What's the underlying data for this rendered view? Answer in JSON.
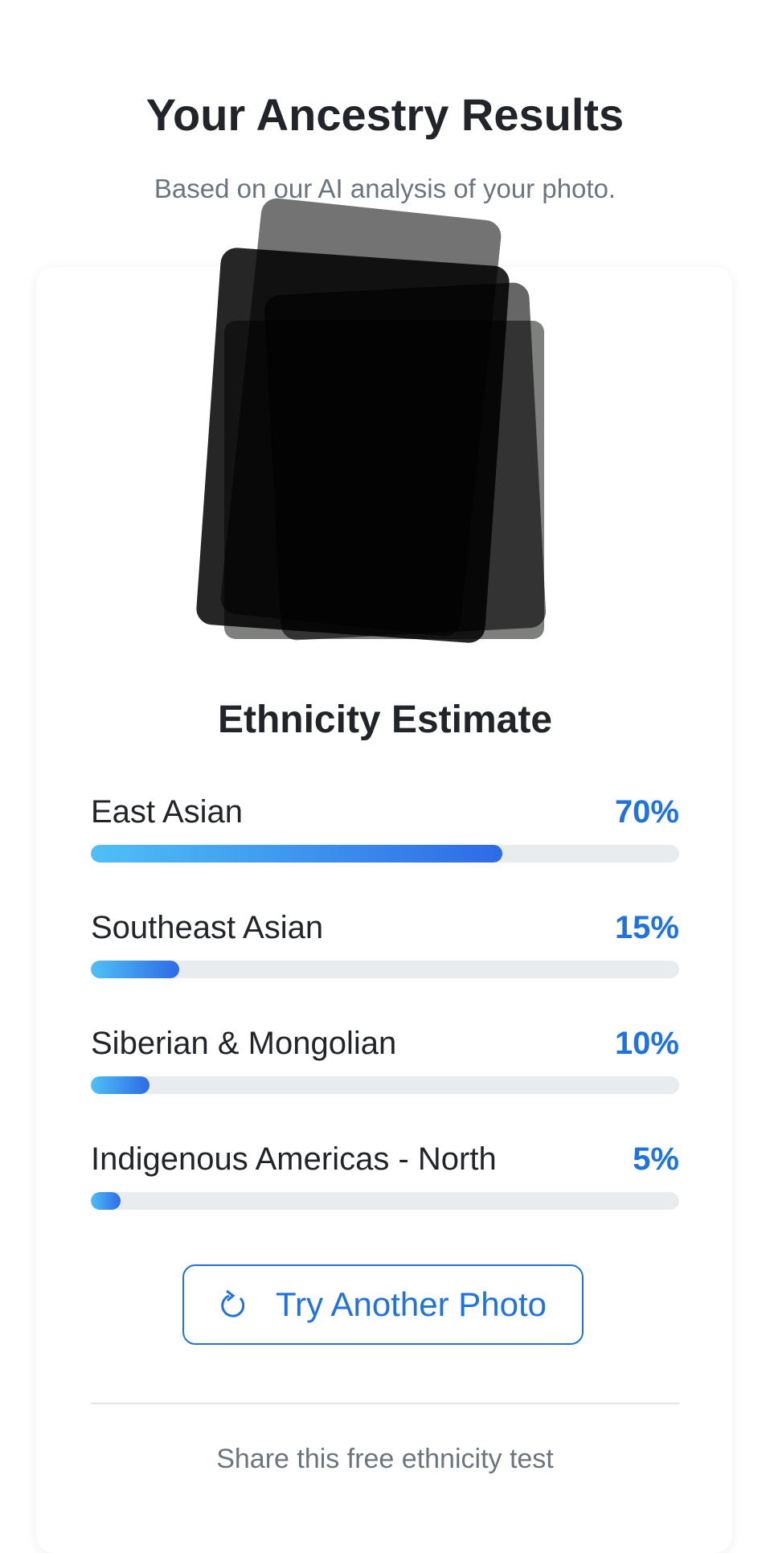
{
  "header": {
    "title": "Your Ancestry Results",
    "subtitle": "Based on our AI analysis of your photo."
  },
  "photo": {
    "description_hidden": true
  },
  "results": {
    "heading": "Ethnicity Estimate",
    "accent": "#1f73e0",
    "items": [
      {
        "label": "East Asian",
        "percent_label": "70%",
        "percent": 70
      },
      {
        "label": "Southeast Asian",
        "percent_label": "15%",
        "percent": 15
      },
      {
        "label": "Siberian & Mongolian",
        "percent_label": "10%",
        "percent": 10
      },
      {
        "label": "Indigenous Americas - North",
        "percent_label": "5%",
        "percent": 5
      }
    ]
  },
  "actions": {
    "try_again_label": "Try Another Photo",
    "try_again_icon": "refresh-icon"
  },
  "footer": {
    "share_text": "Share this free ethnicity test"
  }
}
